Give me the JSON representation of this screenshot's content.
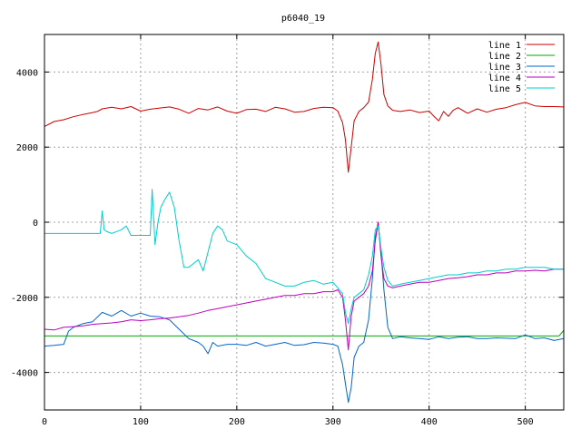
{
  "chart_data": {
    "type": "line",
    "title": "p6040_19",
    "xlim": [
      0,
      540
    ],
    "ylim": [
      -5000,
      5000
    ],
    "x_ticks": [
      0,
      100,
      200,
      300,
      400,
      500
    ],
    "y_ticks": [
      -4000,
      -2000,
      0,
      2000,
      4000
    ],
    "grid": true,
    "legend_position": "top-right",
    "series": [
      {
        "name": "line 1",
        "color": "#cc0000",
        "x": [
          0,
          10,
          20,
          30,
          40,
          50,
          55,
          60,
          70,
          80,
          90,
          100,
          110,
          120,
          130,
          140,
          150,
          160,
          170,
          180,
          190,
          200,
          210,
          220,
          230,
          240,
          250,
          260,
          270,
          280,
          290,
          300,
          305,
          310,
          313,
          316,
          319,
          322,
          327,
          332,
          337,
          341,
          344,
          347,
          350,
          353,
          357,
          362,
          370,
          380,
          390,
          400,
          405,
          410,
          415,
          420,
          425,
          430,
          440,
          450,
          460,
          470,
          480,
          490,
          500,
          510,
          520,
          530,
          540
        ],
        "y": [
          2550,
          2680,
          2730,
          2810,
          2870,
          2920,
          2950,
          3020,
          3060,
          3020,
          3080,
          2960,
          3010,
          3040,
          3070,
          3010,
          2900,
          3030,
          2990,
          3070,
          2960,
          2900,
          3000,
          3010,
          2950,
          3060,
          3020,
          2930,
          2950,
          3030,
          3060,
          3050,
          2960,
          2650,
          2200,
          1330,
          2000,
          2700,
          2950,
          3050,
          3200,
          3800,
          4500,
          4800,
          4200,
          3400,
          3100,
          2980,
          2950,
          2990,
          2920,
          2960,
          2820,
          2700,
          2950,
          2820,
          2980,
          3050,
          2900,
          3020,
          2930,
          3010,
          3050,
          3130,
          3190,
          3100,
          3080,
          3080,
          3070
        ]
      },
      {
        "name": "line 2",
        "color": "#00aa00",
        "x": [
          0,
          535,
          540
        ],
        "y": [
          -3030,
          -3030,
          -2880
        ]
      },
      {
        "name": "line 3",
        "color": "#0066cc",
        "x": [
          0,
          10,
          20,
          25,
          30,
          40,
          50,
          60,
          70,
          80,
          90,
          100,
          110,
          120,
          130,
          140,
          150,
          160,
          165,
          170,
          175,
          180,
          190,
          200,
          210,
          220,
          230,
          240,
          250,
          260,
          270,
          280,
          290,
          300,
          305,
          310,
          313,
          316,
          319,
          322,
          327,
          332,
          337,
          341,
          344,
          347,
          350,
          353,
          357,
          362,
          370,
          380,
          390,
          400,
          410,
          420,
          430,
          440,
          450,
          460,
          470,
          480,
          490,
          500,
          510,
          520,
          530,
          540
        ],
        "y": [
          -3300,
          -3280,
          -3250,
          -2900,
          -2800,
          -2700,
          -2650,
          -2400,
          -2500,
          -2350,
          -2500,
          -2420,
          -2500,
          -2520,
          -2600,
          -2850,
          -3100,
          -3200,
          -3300,
          -3500,
          -3200,
          -3300,
          -3250,
          -3250,
          -3280,
          -3200,
          -3300,
          -3250,
          -3200,
          -3280,
          -3260,
          -3200,
          -3220,
          -3250,
          -3300,
          -3800,
          -4300,
          -4800,
          -4400,
          -3600,
          -3300,
          -3200,
          -2600,
          -1500,
          -400,
          0,
          -800,
          -1800,
          -2800,
          -3100,
          -3050,
          -3080,
          -3100,
          -3120,
          -3050,
          -3100,
          -3060,
          -3050,
          -3100,
          -3100,
          -3080,
          -3090,
          -3100,
          -3000,
          -3100,
          -3080,
          -3150,
          -3100
        ]
      },
      {
        "name": "line 4",
        "color": "#bb00bb",
        "x": [
          0,
          10,
          20,
          30,
          40,
          50,
          60,
          70,
          80,
          90,
          100,
          110,
          120,
          130,
          140,
          150,
          160,
          170,
          180,
          190,
          200,
          210,
          220,
          230,
          240,
          250,
          260,
          270,
          280,
          290,
          300,
          305,
          310,
          313,
          316,
          319,
          322,
          327,
          332,
          337,
          341,
          344,
          347,
          350,
          353,
          357,
          362,
          370,
          380,
          390,
          400,
          410,
          420,
          430,
          440,
          450,
          460,
          470,
          480,
          490,
          500,
          510,
          520,
          530,
          540
        ],
        "y": [
          -2850,
          -2870,
          -2800,
          -2780,
          -2760,
          -2720,
          -2700,
          -2680,
          -2650,
          -2600,
          -2620,
          -2600,
          -2570,
          -2550,
          -2520,
          -2480,
          -2420,
          -2350,
          -2300,
          -2250,
          -2200,
          -2150,
          -2100,
          -2050,
          -2000,
          -1950,
          -1950,
          -1900,
          -1900,
          -1850,
          -1850,
          -1800,
          -2000,
          -2600,
          -3400,
          -2500,
          -2100,
          -2000,
          -1900,
          -1700,
          -1300,
          -500,
          0,
          -900,
          -1500,
          -1700,
          -1750,
          -1700,
          -1650,
          -1600,
          -1600,
          -1550,
          -1500,
          -1480,
          -1450,
          -1400,
          -1400,
          -1350,
          -1350,
          -1300,
          -1300,
          -1280,
          -1300,
          -1250,
          -1250
        ]
      },
      {
        "name": "line 5",
        "color": "#00cccc",
        "x": [
          0,
          20,
          40,
          58,
          60,
          62,
          65,
          70,
          80,
          85,
          90,
          100,
          110,
          112,
          115,
          118,
          121,
          125,
          130,
          135,
          140,
          145,
          150,
          155,
          160,
          165,
          170,
          175,
          180,
          185,
          190,
          200,
          210,
          220,
          230,
          240,
          250,
          260,
          270,
          280,
          290,
          300,
          305,
          310,
          313,
          316,
          319,
          322,
          327,
          332,
          337,
          341,
          344,
          347,
          350,
          353,
          357,
          362,
          370,
          380,
          390,
          400,
          410,
          420,
          430,
          440,
          450,
          460,
          470,
          480,
          490,
          500,
          510,
          520,
          530,
          540
        ],
        "y": [
          -300,
          -300,
          -300,
          -300,
          300,
          -200,
          -250,
          -300,
          -200,
          -100,
          -350,
          -350,
          -350,
          880,
          -600,
          0,
          400,
          600,
          800,
          400,
          -500,
          -1200,
          -1200,
          -1100,
          -1000,
          -1300,
          -800,
          -300,
          -100,
          -200,
          -500,
          -600,
          -900,
          -1100,
          -1500,
          -1600,
          -1700,
          -1700,
          -1600,
          -1550,
          -1650,
          -1600,
          -1750,
          -1900,
          -2400,
          -2700,
          -2300,
          -2000,
          -1900,
          -1800,
          -1400,
          -900,
          -200,
          -100,
          -700,
          -1200,
          -1550,
          -1700,
          -1650,
          -1600,
          -1550,
          -1500,
          -1450,
          -1400,
          -1400,
          -1350,
          -1350,
          -1300,
          -1300,
          -1250,
          -1250,
          -1200,
          -1200,
          -1200,
          -1250,
          -1250
        ]
      }
    ]
  }
}
